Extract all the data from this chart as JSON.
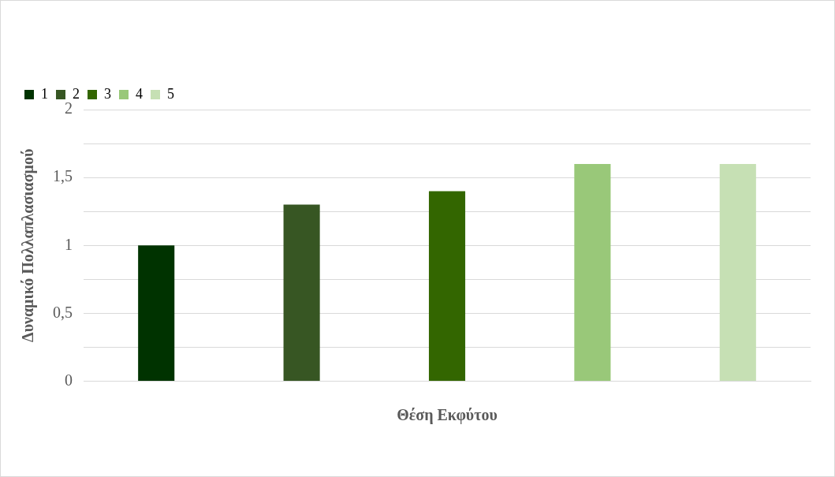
{
  "chart_data": {
    "type": "bar",
    "xlabel": "Θέση Εκφύτου",
    "ylabel": "Δυναμικό Πολλαπλασιασμού",
    "categories": [
      null
    ],
    "series": [
      {
        "name": "1",
        "color": "#003300",
        "values": [
          1.0
        ]
      },
      {
        "name": "2",
        "color": "#375623",
        "values": [
          1.3
        ]
      },
      {
        "name": "3",
        "color": "#336600",
        "values": [
          1.4
        ]
      },
      {
        "name": "4",
        "color": "#99c879",
        "values": [
          1.6
        ]
      },
      {
        "name": "5",
        "color": "#c6e0b4",
        "values": [
          1.6
        ]
      }
    ],
    "ylim": [
      0,
      2
    ],
    "yticks": [
      0,
      {
        "value": 0.25,
        "label": null
      },
      {
        "value": 0.5,
        "label": "0,5"
      },
      {
        "value": 0.75,
        "label": null
      },
      1,
      {
        "value": 1.25,
        "label": null
      },
      {
        "value": 1.5,
        "label": "1,5"
      },
      {
        "value": 1.75,
        "label": null
      },
      2
    ],
    "grid": "y",
    "legend": "top left"
  }
}
